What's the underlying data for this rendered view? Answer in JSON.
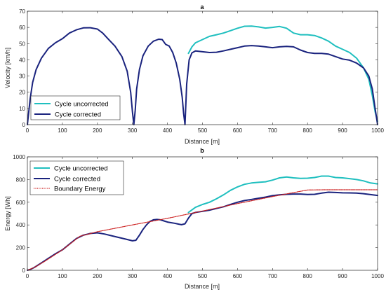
{
  "chart_data": [
    {
      "type": "line",
      "title": "a",
      "xlabel": "Distance [m]",
      "ylabel": "Velocity [km/h]",
      "xlim": [
        0,
        1000
      ],
      "ylim": [
        0,
        70
      ],
      "xticks": [
        0,
        100,
        200,
        300,
        400,
        500,
        600,
        700,
        800,
        900,
        1000
      ],
      "yticks": [
        0,
        10,
        20,
        30,
        40,
        50,
        60,
        70
      ],
      "grid": false,
      "legend_position": "bottom-left",
      "series": [
        {
          "name": "Cycle uncorrected",
          "color": "#1fbfbf",
          "x": [
            460,
            470,
            480,
            500,
            520,
            540,
            560,
            580,
            600,
            620,
            640,
            660,
            680,
            700,
            720,
            740,
            760,
            780,
            800,
            820,
            840,
            860,
            880,
            900,
            920,
            940,
            960,
            975,
            985,
            993,
            1000
          ],
          "y": [
            44,
            48,
            50.5,
            52.5,
            54.5,
            55.5,
            56.5,
            58,
            59.5,
            60.7,
            60.8,
            60.3,
            59.6,
            60,
            60.6,
            59.5,
            56.5,
            55.5,
            55.5,
            55,
            53.5,
            51.5,
            48.5,
            46.5,
            44.5,
            41,
            35,
            28,
            18,
            8,
            2
          ]
        },
        {
          "name": "Cycle corrected",
          "color": "#1a237e",
          "x": [
            0,
            8,
            15,
            25,
            40,
            60,
            80,
            100,
            120,
            140,
            160,
            180,
            200,
            215,
            230,
            250,
            270,
            285,
            295,
            300,
            304,
            308,
            312,
            320,
            330,
            345,
            360,
            375,
            385,
            395,
            405,
            415,
            425,
            435,
            442,
            446,
            450,
            455,
            462,
            470,
            480,
            500,
            520,
            540,
            560,
            580,
            600,
            620,
            640,
            660,
            680,
            700,
            720,
            740,
            760,
            780,
            800,
            820,
            840,
            860,
            880,
            900,
            920,
            940,
            960,
            975,
            985,
            993,
            1000
          ],
          "y": [
            0,
            16,
            26,
            34,
            41,
            47,
            50.5,
            53,
            56.5,
            58.5,
            59.7,
            59.8,
            59,
            56.5,
            53,
            48.5,
            42,
            33,
            20,
            8,
            0,
            9,
            22,
            34,
            42.5,
            48.5,
            51.5,
            52.7,
            52.5,
            49.5,
            48.5,
            44.5,
            38,
            28,
            17,
            7,
            0,
            25,
            40,
            44.3,
            45.5,
            45,
            44.5,
            44.7,
            45.5,
            46.5,
            47.5,
            48.5,
            48.8,
            48.5,
            48,
            47.5,
            48,
            48.3,
            48,
            46,
            44.5,
            44,
            44,
            43.5,
            42,
            40.5,
            39.8,
            38,
            35,
            30,
            22,
            10,
            0
          ]
        }
      ]
    },
    {
      "type": "line",
      "title": "b",
      "xlabel": "Distance [m]",
      "ylabel": "Energy [Wh]",
      "xlim": [
        0,
        1000
      ],
      "ylim": [
        0,
        1000
      ],
      "xticks": [
        0,
        100,
        200,
        300,
        400,
        500,
        600,
        700,
        800,
        900,
        1000
      ],
      "yticks": [
        0,
        200,
        400,
        600,
        800,
        1000
      ],
      "grid": false,
      "legend_position": "top-left",
      "series": [
        {
          "name": "Cycle uncorrected",
          "color": "#1fbfbf",
          "x": [
            460,
            480,
            500,
            520,
            540,
            560,
            580,
            600,
            620,
            640,
            660,
            680,
            700,
            720,
            740,
            760,
            780,
            800,
            820,
            840,
            860,
            880,
            900,
            920,
            940,
            960,
            980,
            1000
          ],
          "y": [
            510,
            555,
            580,
            600,
            630,
            665,
            705,
            735,
            758,
            770,
            775,
            780,
            795,
            815,
            822,
            815,
            810,
            812,
            818,
            830,
            830,
            818,
            815,
            808,
            800,
            788,
            770,
            762
          ]
        },
        {
          "name": "Cycle corrected",
          "color": "#1a237e",
          "x": [
            0,
            10,
            20,
            40,
            60,
            80,
            100,
            120,
            140,
            160,
            180,
            200,
            220,
            240,
            260,
            280,
            300,
            310,
            320,
            330,
            340,
            350,
            360,
            370,
            380,
            390,
            400,
            410,
            420,
            430,
            440,
            450,
            460,
            470,
            480,
            500,
            520,
            540,
            560,
            580,
            600,
            620,
            640,
            660,
            680,
            700,
            720,
            740,
            760,
            780,
            800,
            820,
            840,
            860,
            880,
            900,
            920,
            940,
            960,
            980,
            1000
          ],
          "y": [
            0,
            10,
            25,
            65,
            105,
            145,
            180,
            230,
            280,
            310,
            325,
            330,
            320,
            305,
            290,
            275,
            260,
            265,
            310,
            360,
            400,
            430,
            445,
            448,
            445,
            435,
            425,
            420,
            415,
            408,
            402,
            410,
            460,
            500,
            510,
            520,
            530,
            545,
            560,
            580,
            600,
            615,
            625,
            635,
            645,
            658,
            665,
            670,
            672,
            672,
            668,
            670,
            680,
            688,
            686,
            683,
            682,
            680,
            675,
            667,
            660
          ]
        },
        {
          "name": "Boundary Energy",
          "color": "#cc1f1f",
          "x": [
            0,
            20,
            50,
            100,
            150,
            200,
            300,
            400,
            500,
            600,
            700,
            800,
            850,
            900,
            950,
            1000
          ],
          "y": [
            0,
            25,
            80,
            180,
            300,
            340,
            400,
            458,
            522,
            588,
            650,
            708,
            710,
            710,
            710,
            710
          ]
        }
      ]
    }
  ]
}
